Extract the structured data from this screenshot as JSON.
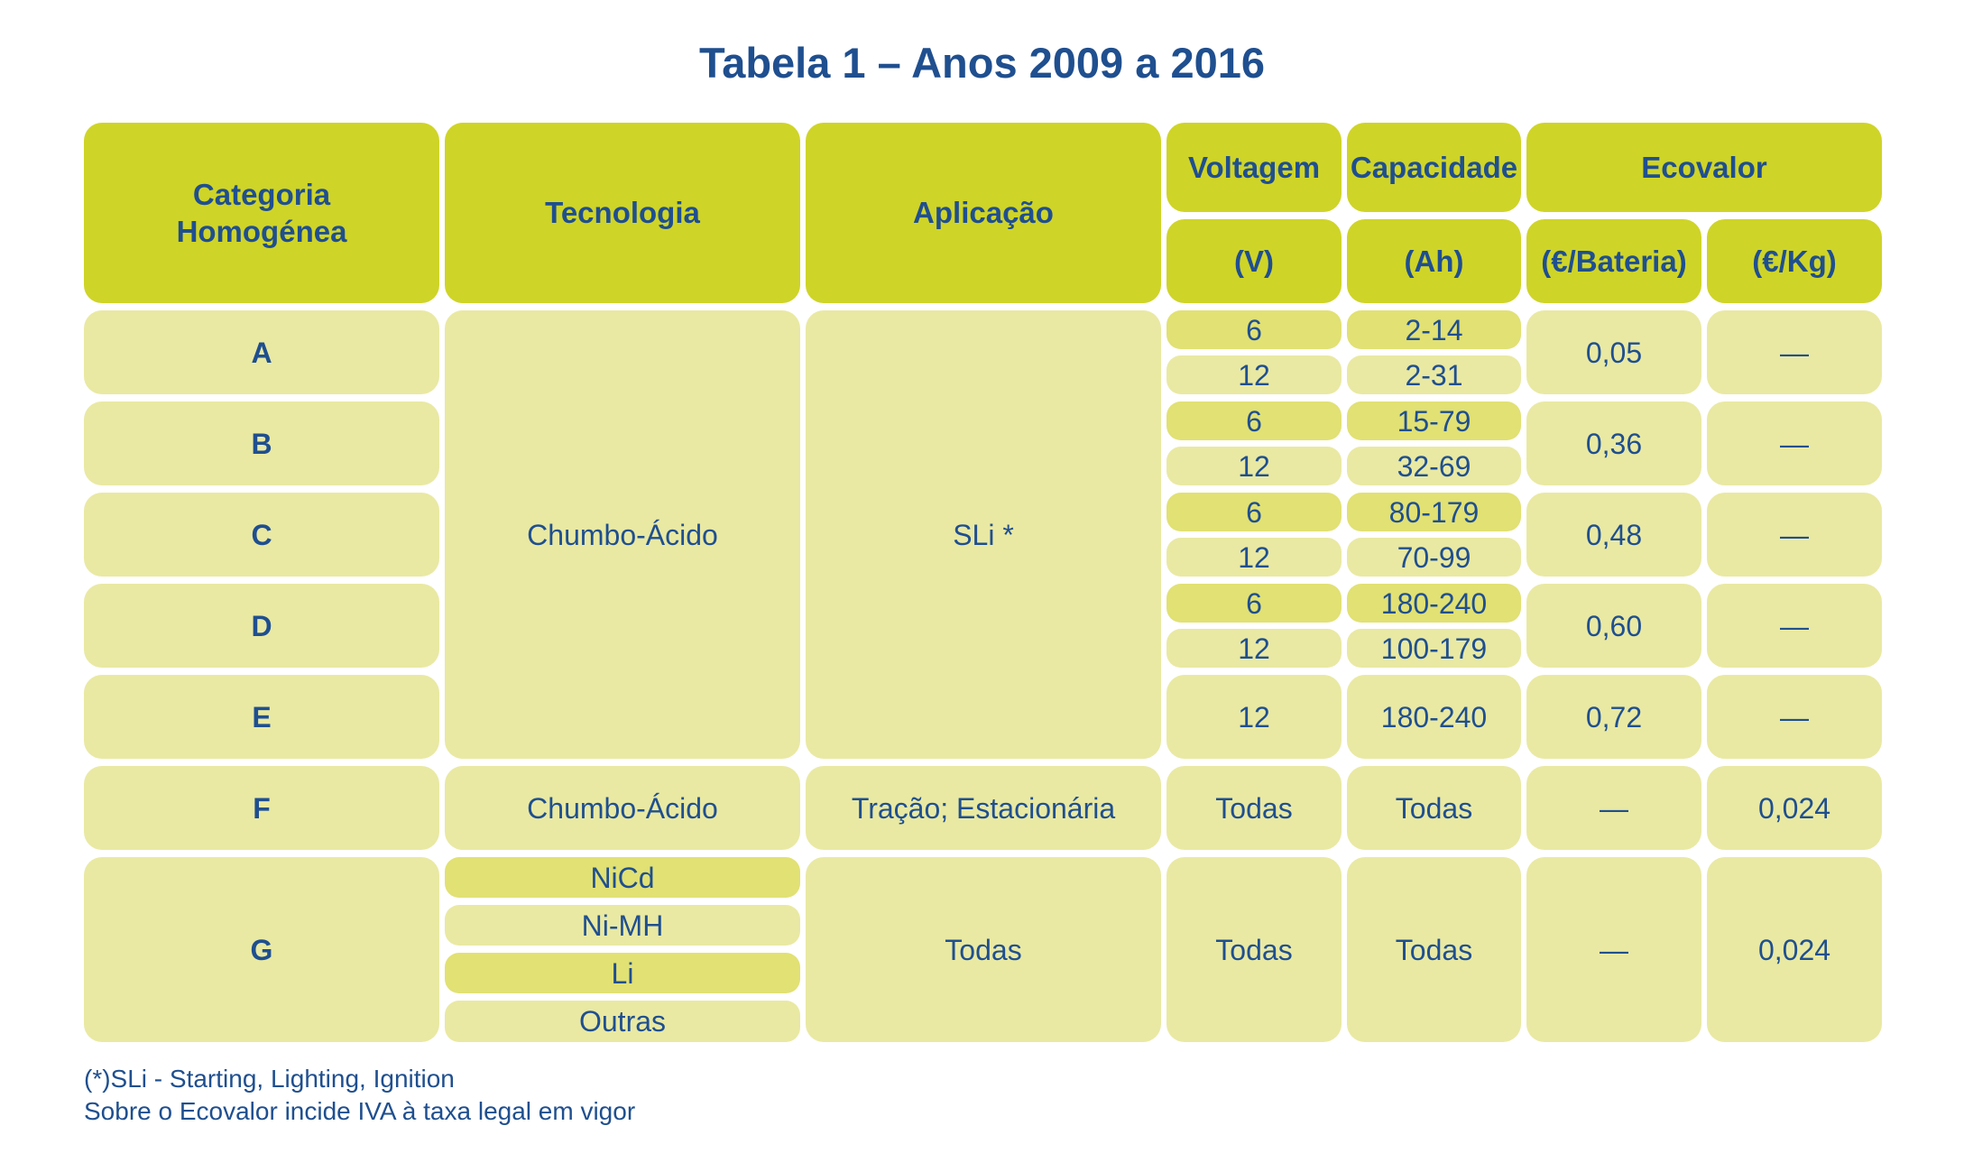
{
  "title": "Tabela 1 – Anos 2009 a 2016",
  "headers": {
    "categoria": "Categoria\nHomogénea",
    "tecnologia": "Tecnologia",
    "aplicacao": "Aplicação",
    "voltagem": "Voltagem",
    "voltagem_unit": "(V)",
    "capacidade": "Capacidade",
    "capacidade_unit": "(Ah)",
    "ecovalor": "Ecovalor",
    "ecovalor_bateria": "(€/Bateria)",
    "ecovalor_kg": "(€/Kg)"
  },
  "rows_ae": {
    "tecnologia": "Chumbo-Ácido",
    "aplicacao": "SLi *",
    "categories": [
      {
        "cat": "A",
        "v1": "6",
        "c1": "2-14",
        "v2": "12",
        "c2": "2-31",
        "eco_bat": "0,05",
        "eco_kg": "—"
      },
      {
        "cat": "B",
        "v1": "6",
        "c1": "15-79",
        "v2": "12",
        "c2": "32-69",
        "eco_bat": "0,36",
        "eco_kg": "—"
      },
      {
        "cat": "C",
        "v1": "6",
        "c1": "80-179",
        "v2": "12",
        "c2": "70-99",
        "eco_bat": "0,48",
        "eco_kg": "—"
      },
      {
        "cat": "D",
        "v1": "6",
        "c1": "180-240",
        "v2": "12",
        "c2": "100-179",
        "eco_bat": "0,60",
        "eco_kg": "—"
      },
      {
        "cat": "E",
        "v": "12",
        "c": "180-240",
        "eco_bat": "0,72",
        "eco_kg": "—"
      }
    ]
  },
  "row_f": {
    "cat": "F",
    "tecnologia": "Chumbo-Ácido",
    "aplicacao": "Tração; Estacionária",
    "voltagem": "Todas",
    "capacidade": "Todas",
    "eco_bat": "—",
    "eco_kg": "0,024"
  },
  "row_g": {
    "cat": "G",
    "tecnologias": [
      "NiCd",
      "Ni-MH",
      "Li",
      "Outras"
    ],
    "aplicacao": "Todas",
    "voltagem": "Todas",
    "capacidade": "Todas",
    "eco_bat": "—",
    "eco_kg": "0,024"
  },
  "notes": [
    "(*)SLi - Starting, Lighting, Ignition",
    "Sobre o Ecovalor incide IVA à taxa legal em vigor"
  ],
  "colors": {
    "header": "#cfd428",
    "light": "#e9e9a3",
    "dark": "#e1e174",
    "text": "#1f4f8f"
  }
}
